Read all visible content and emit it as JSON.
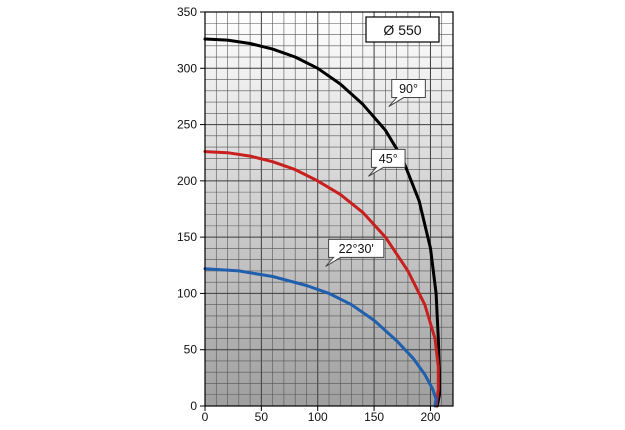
{
  "chart_data": {
    "type": "line",
    "title": "",
    "xlabel": "",
    "ylabel": "",
    "xlim": [
      0,
      220
    ],
    "ylim": [
      0,
      350
    ],
    "grid": true,
    "x_ticks": [
      "0",
      "50",
      "100",
      "150",
      "200"
    ],
    "y_ticks": [
      "0",
      "50",
      "100",
      "150",
      "200",
      "250",
      "300",
      "350"
    ],
    "diameter_label": "Ø 550",
    "series": [
      {
        "name": "90°",
        "color": "#000000",
        "points": [
          [
            0,
            326
          ],
          [
            20,
            325
          ],
          [
            40,
            322
          ],
          [
            60,
            317
          ],
          [
            80,
            310
          ],
          [
            100,
            300
          ],
          [
            120,
            286
          ],
          [
            140,
            268
          ],
          [
            160,
            245
          ],
          [
            175,
            220
          ],
          [
            190,
            182
          ],
          [
            200,
            140
          ],
          [
            205,
            100
          ],
          [
            207,
            60
          ],
          [
            208,
            30
          ],
          [
            208,
            10
          ],
          [
            206,
            0
          ]
        ]
      },
      {
        "name": "45°",
        "color": "#c8201e",
        "points": [
          [
            0,
            226
          ],
          [
            20,
            225
          ],
          [
            40,
            222
          ],
          [
            60,
            217
          ],
          [
            80,
            210
          ],
          [
            100,
            200
          ],
          [
            120,
            188
          ],
          [
            140,
            172
          ],
          [
            160,
            150
          ],
          [
            180,
            120
          ],
          [
            195,
            90
          ],
          [
            204,
            60
          ],
          [
            207,
            35
          ],
          [
            207,
            15
          ],
          [
            205,
            0
          ]
        ]
      },
      {
        "name": "22°30'",
        "color": "#1f5fae",
        "points": [
          [
            0,
            122
          ],
          [
            30,
            120
          ],
          [
            60,
            115
          ],
          [
            90,
            107
          ],
          [
            110,
            100
          ],
          [
            130,
            90
          ],
          [
            150,
            76
          ],
          [
            170,
            58
          ],
          [
            185,
            42
          ],
          [
            195,
            28
          ],
          [
            202,
            15
          ],
          [
            205,
            6
          ],
          [
            204,
            0
          ]
        ]
      }
    ],
    "annotations": [
      {
        "text": "90°",
        "x": 163,
        "y": 266
      },
      {
        "text": "45°",
        "x": 145,
        "y": 204
      },
      {
        "text": "22°30'",
        "x": 107,
        "y": 124
      }
    ]
  }
}
